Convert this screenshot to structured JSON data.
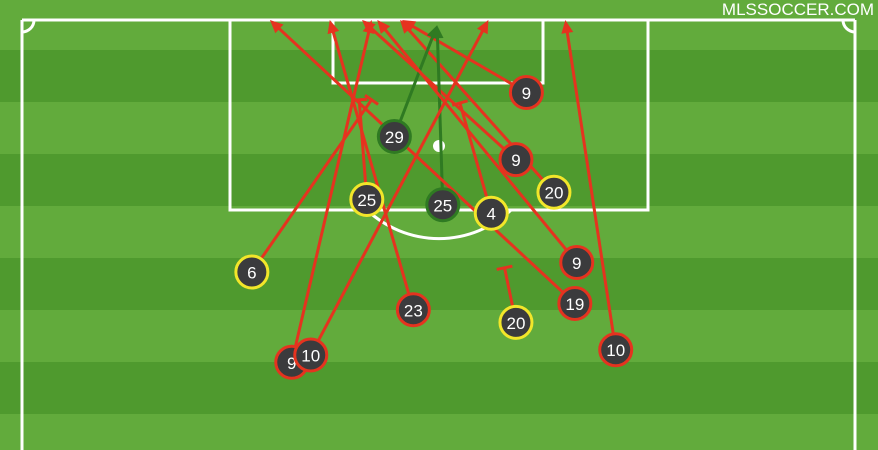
{
  "brand": "MLSSOCCER.COM",
  "colors": {
    "goal": "#2f7a22",
    "off_target": "#e5331f",
    "blocked_or_saved": "#f2e62a",
    "marker_fill": "#3b3b3d",
    "pitch_light": "#62ab3c",
    "pitch_dark": "#4f9a2e",
    "lines": "#ffffff"
  },
  "chart_data": {
    "type": "scatter",
    "description_units": "yards: x across from pitch centre line (right positive), y distance out from goal line",
    "shots": [
      {
        "player": "9",
        "outcome": "off_target",
        "start": [
          9.2,
          6.9
        ],
        "end": [
          -3.9,
          0
        ],
        "end_marker": "arrow"
      },
      {
        "player": "9",
        "outcome": "off_target",
        "start": [
          8.1,
          13.3
        ],
        "end": [
          -8.1,
          0
        ],
        "end_marker": "arrow"
      },
      {
        "player": "20",
        "outcome": "blocked_or_saved",
        "start": [
          12.1,
          16.4
        ],
        "end": [
          -4.1,
          0
        ],
        "end_marker": "arrow"
      },
      {
        "player": "29",
        "outcome": "goal",
        "start": [
          -4.7,
          11.1
        ],
        "end": [
          -0.2,
          0.5
        ],
        "end_marker": "arrow"
      },
      {
        "player": "25",
        "outcome": "goal",
        "start": [
          0.4,
          17.6
        ],
        "end": [
          -0.2,
          0.5
        ],
        "end_marker": "arrow"
      },
      {
        "player": "25",
        "outcome": "blocked_or_saved",
        "start": [
          -7.6,
          17.1
        ],
        "end": [
          -8.4,
          7.6
        ],
        "end_marker": "block"
      },
      {
        "player": "4",
        "outcome": "blocked_or_saved",
        "start": [
          5.5,
          18.4
        ],
        "end": [
          2.2,
          7.9
        ],
        "end_marker": "block"
      },
      {
        "player": "6",
        "outcome": "blocked_or_saved",
        "start": [
          -19.7,
          24.0
        ],
        "end": [
          -7.1,
          7.6
        ],
        "end_marker": "block"
      },
      {
        "player": "23",
        "outcome": "off_target",
        "start": [
          -2.7,
          27.6
        ],
        "end": [
          -11.5,
          0
        ],
        "end_marker": "arrow"
      },
      {
        "player": "20",
        "outcome": "blocked_or_saved",
        "start": [
          8.1,
          28.8
        ],
        "end": [
          6.9,
          23.6
        ],
        "end_marker": "block"
      },
      {
        "player": "9",
        "outcome": "off_target",
        "start": [
          14.5,
          23.1
        ],
        "end": [
          -6.5,
          0
        ],
        "end_marker": "arrow"
      },
      {
        "player": "19",
        "outcome": "off_target",
        "start": [
          14.3,
          27.0
        ],
        "end": [
          -17.8,
          0
        ],
        "end_marker": "arrow"
      },
      {
        "player": "10",
        "outcome": "off_target",
        "start": [
          18.6,
          31.4
        ],
        "end": [
          13.3,
          0
        ],
        "end_marker": "arrow"
      },
      {
        "player": "9",
        "outcome": "off_target",
        "start": [
          -15.5,
          32.6
        ],
        "end": [
          -7.1,
          0
        ],
        "end_marker": "arrow"
      },
      {
        "player": "10",
        "outcome": "off_target",
        "start": [
          -13.5,
          31.9
        ],
        "end": [
          5.2,
          0
        ],
        "end_marker": "arrow"
      }
    ]
  }
}
